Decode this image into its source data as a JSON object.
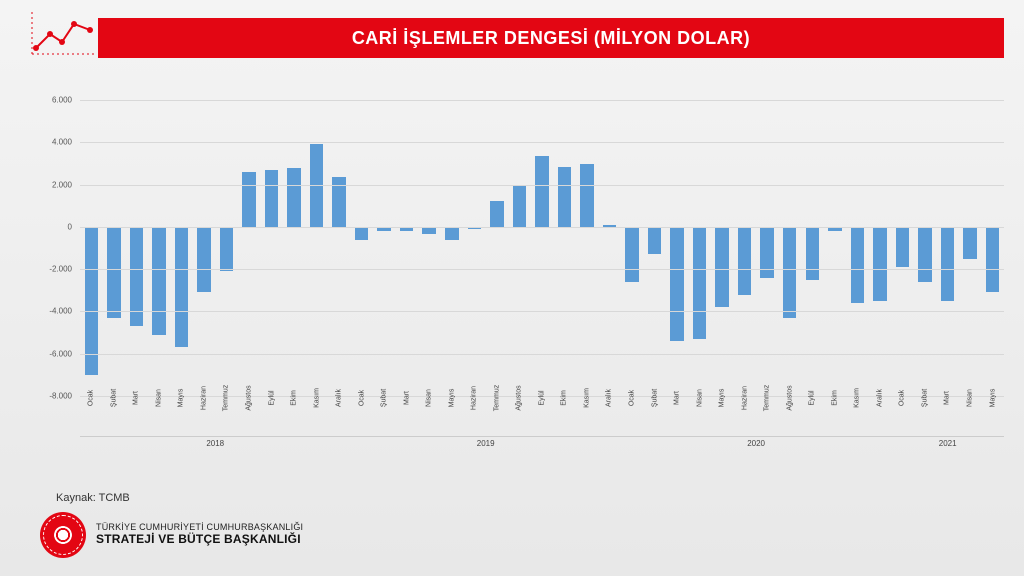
{
  "header": {
    "title": "CARİ İŞLEMLER DENGESİ (MİLYON DOLAR)"
  },
  "source": {
    "label": "Kaynak:",
    "value": "TCMB"
  },
  "footer": {
    "line1": "TÜRKİYE CUMHURİYETİ CUMHURBAŞKANLIĞI",
    "line2": "STRATEJİ VE BÜTÇE BAŞKANLIĞI"
  },
  "chart": {
    "type": "bar",
    "background_color": "transparent",
    "bar_color": "#5b9bd5",
    "grid_color": "#d8d8d8",
    "text_color": "#444444",
    "ylim": [
      -8000,
      6000
    ],
    "ytick_step": 2000,
    "ytick_format": "dot-thousand",
    "bar_width": 0.6,
    "label_fontsize": 7,
    "years": [
      {
        "label": "2018",
        "count": 12
      },
      {
        "label": "2019",
        "count": 12
      },
      {
        "label": "2020",
        "count": 12
      },
      {
        "label": "2021",
        "count": 5
      }
    ],
    "months": [
      "Ocak",
      "Şubat",
      "Mart",
      "Nisan",
      "Mayıs",
      "Haziran",
      "Temmuz",
      "Ağustos",
      "Eylül",
      "Ekim",
      "Kasım",
      "Aralık",
      "Ocak",
      "Şubat",
      "Mart",
      "Nisan",
      "Mayıs",
      "Haziran",
      "Temmuz",
      "Ağustos",
      "Eylül",
      "Ekim",
      "Kasım",
      "Aralık",
      "Ocak",
      "Şubat",
      "Mart",
      "Nisan",
      "Mayıs",
      "Haziran",
      "Temmuz",
      "Ağustos",
      "Eylül",
      "Ekim",
      "Kasım",
      "Aralık",
      "Ocak",
      "Şubat",
      "Mart",
      "Nisan",
      "Mayıs"
    ],
    "values": [
      -7000,
      -4300,
      -4700,
      -5100,
      -5700,
      -3100,
      -2100,
      2600,
      2700,
      2800,
      3900,
      2350,
      -600,
      -200,
      -200,
      -350,
      -600,
      -100,
      1200,
      2000,
      3350,
      2850,
      2950,
      100,
      -2600,
      -1300,
      -5400,
      -5300,
      -3800,
      -3200,
      -2400,
      -4300,
      -2500,
      -200,
      -3600,
      -3500,
      -1900,
      -2600,
      -3500,
      -1500,
      -3100
    ]
  },
  "icon_dots_color": "#e30613"
}
